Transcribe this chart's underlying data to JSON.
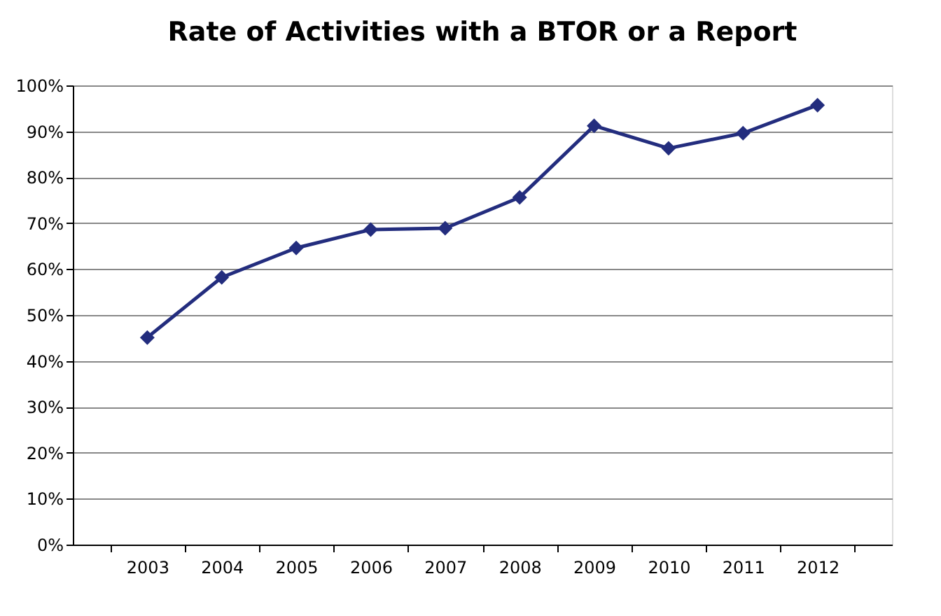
{
  "chart_data": {
    "type": "line",
    "title": "Rate of Activities with a BTOR or a Report",
    "categories": [
      "2003",
      "2004",
      "2005",
      "2006",
      "2007",
      "2008",
      "2009",
      "2010",
      "2011",
      "2012"
    ],
    "series": [
      {
        "color": "#232d7e",
        "values": [
          45.1,
          58.2,
          64.6,
          68.6,
          68.9,
          75.6,
          91.2,
          86.3,
          89.6,
          95.7
        ]
      }
    ],
    "ylim": [
      0,
      100
    ],
    "yticks": [
      {
        "value": 0,
        "label": "0%"
      },
      {
        "value": 10,
        "label": "10%"
      },
      {
        "value": 20,
        "label": "20%"
      },
      {
        "value": 30,
        "label": "30%"
      },
      {
        "value": 40,
        "label": "40%"
      },
      {
        "value": 50,
        "label": "50%"
      },
      {
        "value": 60,
        "label": "60%"
      },
      {
        "value": 70,
        "label": "70%"
      },
      {
        "value": 80,
        "label": "80%"
      },
      {
        "value": 90,
        "label": "90%"
      },
      {
        "value": 100,
        "label": "100%"
      }
    ],
    "grid": "y",
    "marker": "diamond",
    "line_style": "solid"
  }
}
